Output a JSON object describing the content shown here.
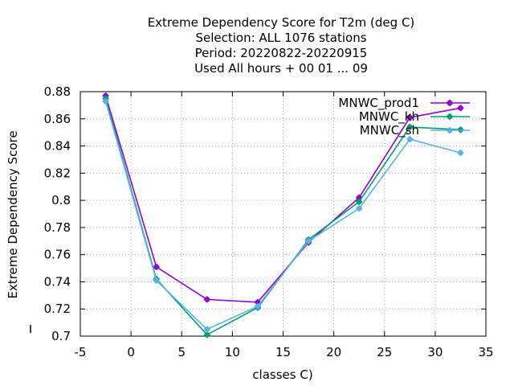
{
  "chart_data": {
    "type": "line",
    "title_lines": [
      "Extreme Dependency Score  for T2m (deg C)",
      "Selection: ALL   1076 stations",
      "Period: 20220822-20220915",
      "Used  All hours + 00 01 ... 09"
    ],
    "xlabel": "classes C)",
    "ylabel": "Extreme Dependency Score",
    "xlim": [
      -5,
      35
    ],
    "ylim": [
      0.7,
      0.88
    ],
    "xticks": [
      -5,
      0,
      5,
      10,
      15,
      20,
      25,
      30,
      35
    ],
    "yticks": [
      0.7,
      0.72,
      0.74,
      0.76,
      0.78,
      0.8,
      0.82,
      0.84,
      0.86,
      0.88
    ],
    "xtick_labels": [
      "-5",
      "0",
      "5",
      "10",
      "15",
      "20",
      "25",
      "30",
      "35"
    ],
    "ytick_labels": [
      "0.7",
      "0.72",
      "0.74",
      "0.76",
      "0.78",
      "0.8",
      "0.82",
      "0.84",
      "0.86",
      "0.88"
    ],
    "grid": true,
    "legend_position": "top-right",
    "series": [
      {
        "name": "MNWC_prod1",
        "color": "#9400d3",
        "x": [
          -2.5,
          2.5,
          7.5,
          12.5,
          17.5,
          22.5,
          27.5,
          32.5
        ],
        "y": [
          0.877,
          0.751,
          0.727,
          0.725,
          0.769,
          0.802,
          0.861,
          0.868
        ]
      },
      {
        "name": "MNWC_kh",
        "color": "#009e73",
        "x": [
          -2.5,
          2.5,
          7.5,
          12.5,
          17.5,
          22.5,
          27.5,
          32.5
        ],
        "y": [
          0.875,
          0.742,
          0.701,
          0.721,
          0.771,
          0.799,
          0.854,
          0.852
        ]
      },
      {
        "name": "MNWC_sh",
        "color": "#56b4e9",
        "x": [
          -2.5,
          2.5,
          7.5,
          12.5,
          17.5,
          22.5,
          27.5,
          32.5
        ],
        "y": [
          0.873,
          0.741,
          0.705,
          0.722,
          0.77,
          0.794,
          0.845,
          0.835
        ]
      }
    ]
  }
}
